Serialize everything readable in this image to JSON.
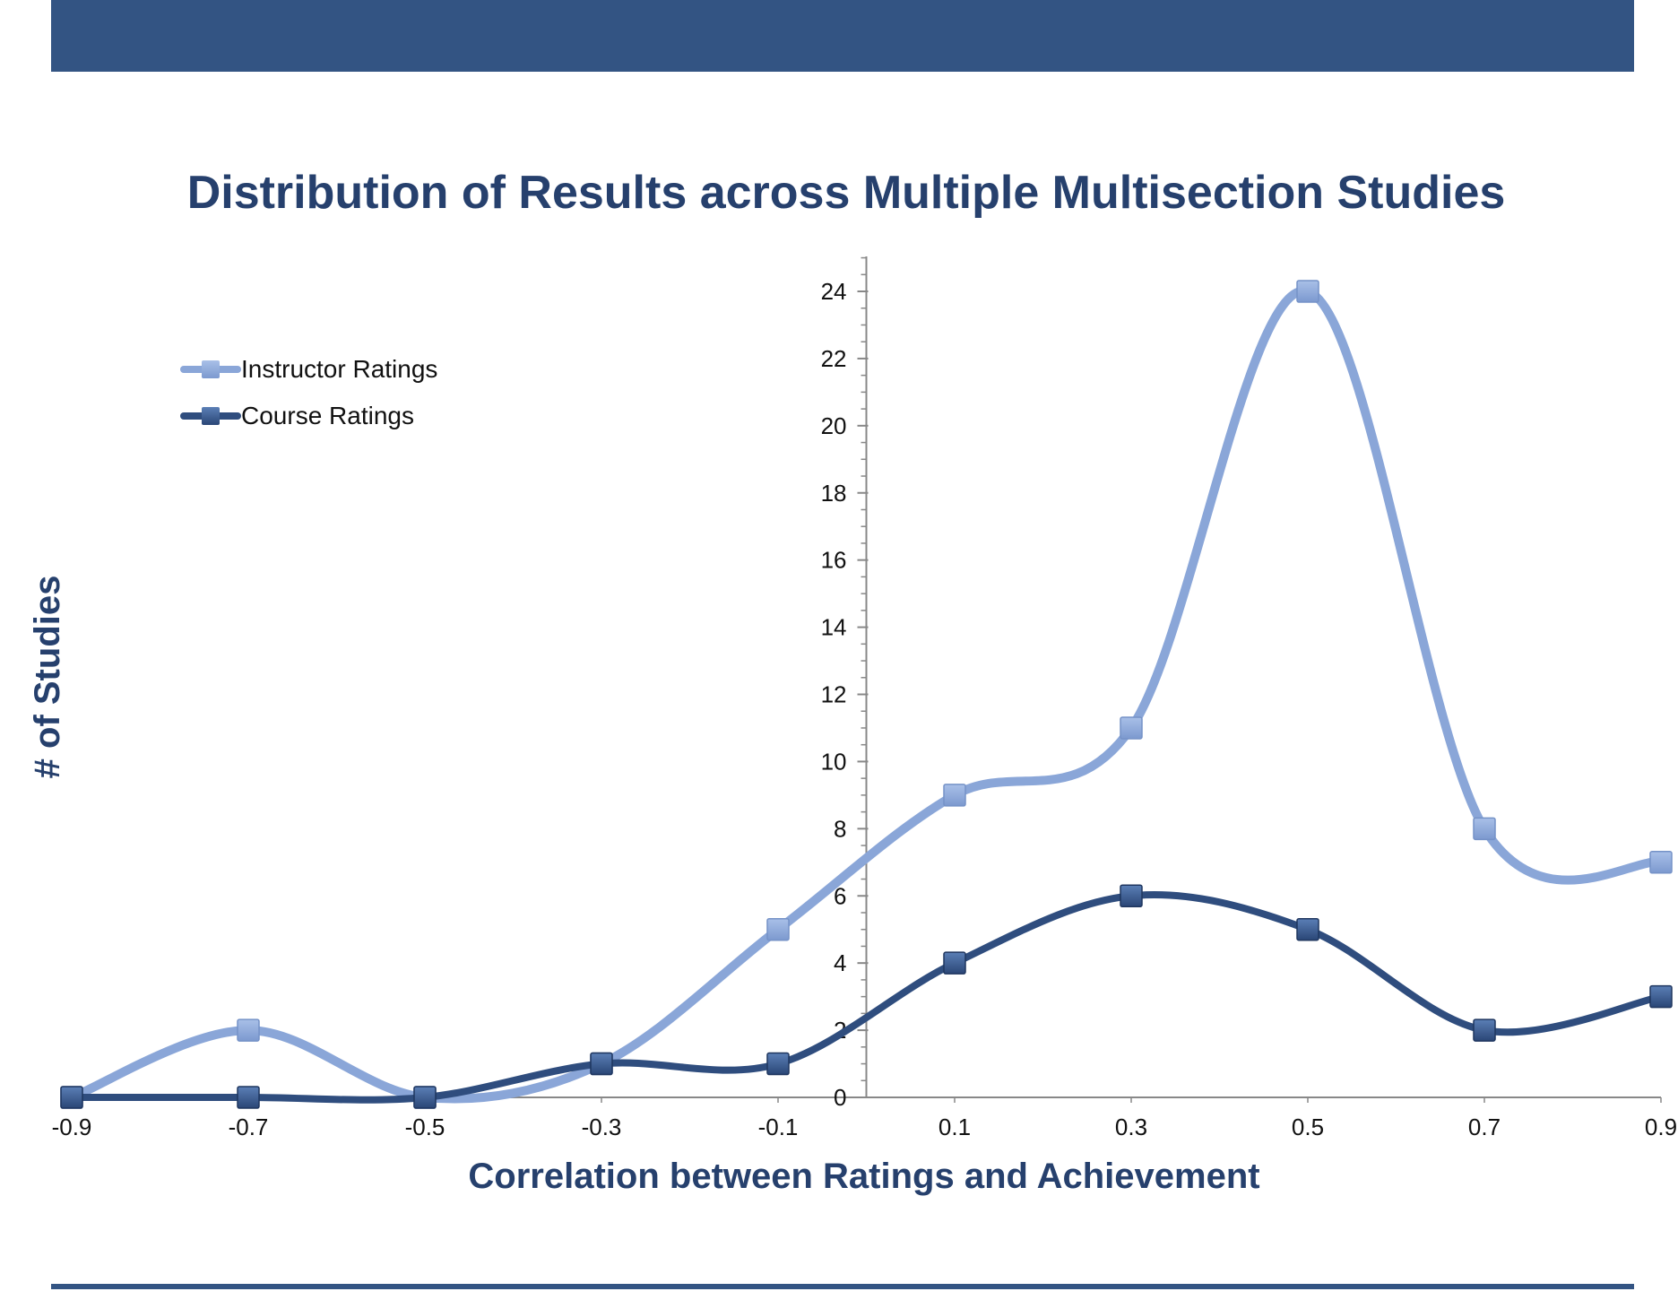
{
  "colors": {
    "band": "#335483",
    "title": "#26406d",
    "instructor": "#8aa6d8",
    "course": "#2f4d7e",
    "axis": "#888888",
    "tick_text": "#111111"
  },
  "chart_data": {
    "type": "line",
    "title": "Distribution of Results across Multiple Multisection Studies",
    "xlabel": "Correlation between Ratings and Achievement",
    "ylabel": "# of Studies",
    "x": [
      -0.9,
      -0.7,
      -0.5,
      -0.3,
      -0.1,
      0.1,
      0.3,
      0.5,
      0.7,
      0.9
    ],
    "x_tick_labels": [
      "-0.9",
      "-0.7",
      "-0.5",
      "-0.3",
      "-0.1",
      "0.1",
      "0.3",
      "0.5",
      "0.7",
      "0.9"
    ],
    "xlim": [
      -0.9,
      0.9
    ],
    "ylim": [
      0,
      24
    ],
    "y_ticks": [
      0,
      2,
      4,
      6,
      8,
      10,
      12,
      14,
      16,
      18,
      20,
      22,
      24
    ],
    "y_tick_labels": [
      "0",
      "2",
      "4",
      "6",
      "8",
      "10",
      "12",
      "14",
      "16",
      "18",
      "20",
      "22",
      "24"
    ],
    "y_axis_at_x": 0,
    "smooth": true,
    "grid": false,
    "legend_position": "top-left",
    "series": [
      {
        "name": "Instructor Ratings",
        "color_key": "instructor",
        "values": [
          0,
          2,
          0,
          1,
          5,
          9,
          11,
          24,
          8,
          7
        ]
      },
      {
        "name": "Course Ratings",
        "color_key": "course",
        "values": [
          0,
          0,
          0,
          1,
          1,
          4,
          6,
          5,
          2,
          3
        ]
      }
    ]
  }
}
